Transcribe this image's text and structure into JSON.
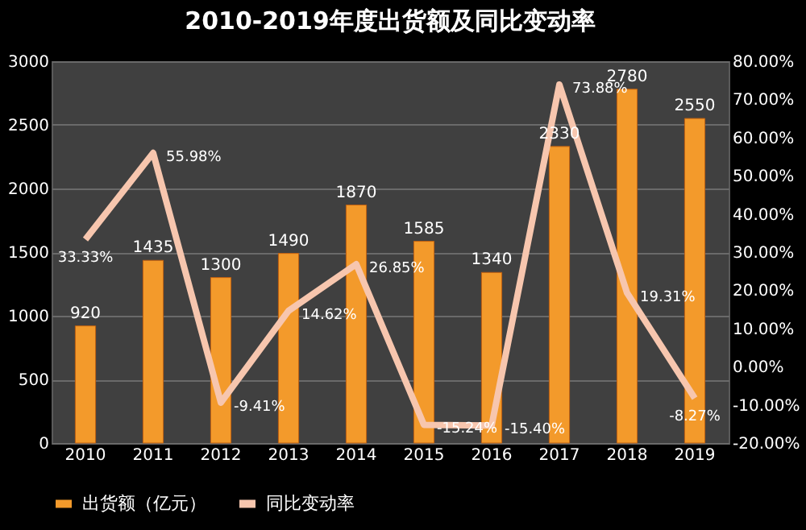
{
  "chart_data": {
    "type": "bar",
    "title": "2010-2019年度出货额及同比变动率",
    "categories": [
      "2010",
      "2011",
      "2012",
      "2013",
      "2014",
      "2015",
      "2016",
      "2017",
      "2018",
      "2019"
    ],
    "series": [
      {
        "name": "出货额（亿元）",
        "color": "#f39a2b",
        "values": [
          920,
          1435,
          1300,
          1490,
          1870,
          1585,
          1340,
          2330,
          2780,
          2550
        ],
        "value_labels": [
          "920",
          "1435",
          "1300",
          "1490",
          "1870",
          "1585",
          "1340",
          "2330",
          "2780",
          "2550"
        ]
      },
      {
        "name": "同比变动率",
        "type": "line",
        "axis": "y2",
        "color": "#f7c6ae",
        "values": [
          33.33,
          55.98,
          -9.41,
          14.62,
          26.85,
          -15.24,
          -15.4,
          73.88,
          19.31,
          -8.27
        ],
        "value_labels": [
          "33.33%",
          "55.98%",
          "-9.41%",
          "14.62%",
          "26.85%",
          "-15.24%",
          "-15.40%",
          "73.88%",
          "19.31%",
          "-8.27%"
        ]
      }
    ],
    "ylim": [
      0,
      3000
    ],
    "yticks": [
      0,
      500,
      1000,
      1500,
      2000,
      2500,
      3000
    ],
    "y2lim": [
      -20,
      80
    ],
    "y2ticks": [
      {
        "value": -20,
        "label": "-20.00%"
      },
      {
        "value": -10,
        "label": "-10.00%"
      },
      {
        "value": 0,
        "label": "0.00%"
      },
      {
        "value": 10,
        "label": "10.00%"
      },
      {
        "value": 20,
        "label": "20.00%"
      },
      {
        "value": 30,
        "label": "30.00%"
      },
      {
        "value": 40,
        "label": "40.00%"
      },
      {
        "value": 50,
        "label": "50.00%"
      },
      {
        "value": 60,
        "label": "60.00%"
      },
      {
        "value": 70,
        "label": "70.00%"
      },
      {
        "value": 80,
        "label": "80.00%"
      }
    ],
    "grid": "y",
    "legend": "bottom",
    "marker": "none",
    "line_style": "solid"
  }
}
